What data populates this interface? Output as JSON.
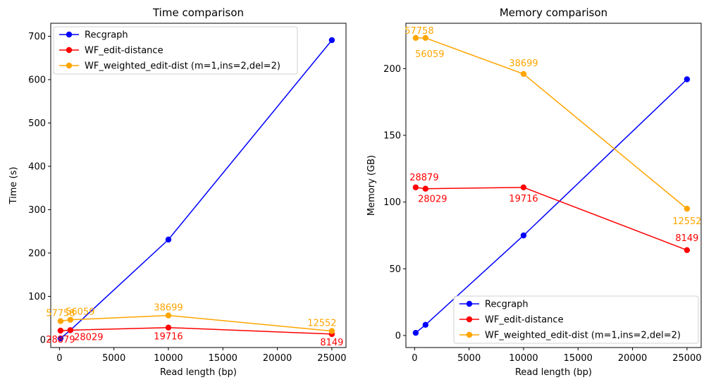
{
  "chart_data": [
    {
      "type": "line",
      "title": "Time comparison",
      "xlabel": "Read length (bp)",
      "ylabel": "Time (s)",
      "xlim": [
        -800,
        26300
      ],
      "ylim": [
        -18,
        730
      ],
      "xticks": [
        0,
        5000,
        10000,
        15000,
        20000,
        25000
      ],
      "yticks": [
        0,
        100,
        200,
        300,
        400,
        500,
        600,
        700
      ],
      "legend_position": "top-left",
      "series": [
        {
          "name": "Recgraph",
          "color": "#0000ff",
          "x": [
            100,
            1000,
            10000,
            25000
          ],
          "y": [
            3,
            22,
            231,
            691
          ],
          "labels": []
        },
        {
          "name": "WF_edit-distance",
          "color": "#ff0000",
          "x": [
            100,
            1000,
            10000,
            25000
          ],
          "y": [
            21,
            22,
            28,
            13
          ],
          "labels": [
            "28879",
            "28029",
            "19716",
            "8149"
          ]
        },
        {
          "name": "WF_weighted_edit-dist (m=1,ins=2,del=2)",
          "color": "#ffa500",
          "x": [
            100,
            1000,
            10000,
            25000
          ],
          "y": [
            43,
            46,
            56,
            20
          ],
          "labels": [
            "57758",
            "56059",
            "38699",
            "12552"
          ]
        }
      ]
    },
    {
      "type": "line",
      "title": "Memory comparison",
      "xlabel": "Read length (bp)",
      "ylabel": "Memory (GB)",
      "xlim": [
        -800,
        26300
      ],
      "ylim": [
        -9,
        234
      ],
      "xticks": [
        0,
        5000,
        10000,
        15000,
        20000,
        25000
      ],
      "yticks": [
        0,
        50,
        100,
        150,
        200
      ],
      "legend_position": "bottom-right",
      "series": [
        {
          "name": "Recgraph",
          "color": "#0000ff",
          "x": [
            100,
            1000,
            10000,
            25000
          ],
          "y": [
            2,
            8,
            75,
            192
          ],
          "labels": []
        },
        {
          "name": "WF_edit-distance",
          "color": "#ff0000",
          "x": [
            100,
            1000,
            10000,
            25000
          ],
          "y": [
            111,
            110,
            111,
            64
          ],
          "labels": [
            "28879",
            "28029",
            "19716",
            "8149"
          ]
        },
        {
          "name": "WF_weighted_edit-dist (m=1,ins=2,del=2)",
          "color": "#ffa500",
          "x": [
            100,
            1000,
            10000,
            25000
          ],
          "y": [
            223,
            223,
            196,
            95
          ],
          "labels": [
            "57758",
            "56059",
            "38699",
            "12552"
          ]
        }
      ]
    }
  ]
}
